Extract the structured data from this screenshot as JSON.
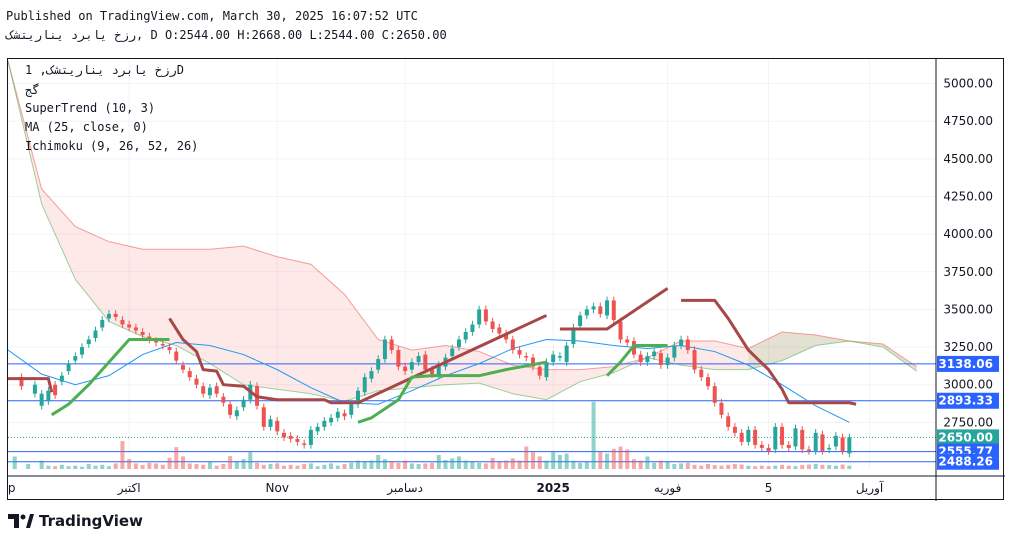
{
  "header": {
    "published": "Published on TradingView.com, March 30, 2025 16:07:52 UTC",
    "symbol_line": "رزخ یابرد یناریتشک, D O:2544.00 H:2668.00 L:2544.00 C:2650.00"
  },
  "legend": {
    "line1": "رزخ یابرد یناریتشک, 1D",
    "line2": "گج",
    "indicators": [
      "SuperTrend (10, 3)",
      "MA (25, close, 0)",
      "Ichimoku (9, 26, 52, 26)"
    ]
  },
  "brand": {
    "name": "TradingView"
  },
  "colors": {
    "up": "#26a69a",
    "down": "#ef5350",
    "supertrend_up": "#4caf50",
    "supertrend_down": "#a84747",
    "ma": "#2196f3",
    "price_label": "#26a69a",
    "level_label": "#2962ff"
  },
  "chart_data": {
    "type": "candlestick",
    "y_range": [
      2440,
      5150
    ],
    "x_range": [
      0,
      130
    ],
    "y_ticks": [
      "5000.00",
      "4750.00",
      "4500.00",
      "4250.00",
      "4000.00",
      "3750.00",
      "3500.00",
      "3250.00",
      "3000.00",
      "2750.00"
    ],
    "x_ticks": [
      {
        "label": "ep",
        "x": 0
      },
      {
        "label": "اکتبر",
        "x": 18
      },
      {
        "label": "Nov",
        "x": 40
      },
      {
        "label": "دسامبر",
        "x": 59
      },
      {
        "label": "2025",
        "x": 81
      },
      {
        "label": "فوریه",
        "x": 98
      },
      {
        "label": "5",
        "x": 113
      },
      {
        "label": "آوریل",
        "x": 128
      }
    ],
    "price_labels": [
      {
        "value": 3138.06,
        "text": "3138.06",
        "kind": "level"
      },
      {
        "value": 2893.33,
        "text": "2893.33",
        "kind": "level"
      },
      {
        "value": 2650.0,
        "text": "2650.00",
        "kind": "last"
      },
      {
        "value": 2555.77,
        "text": "2555.77",
        "kind": "level"
      },
      {
        "value": 2488.26,
        "text": "2488.26",
        "kind": "level"
      }
    ],
    "horizontal_lines": [
      3138.06,
      2893.33,
      2555.77,
      2488.26
    ],
    "last_price": 2650.0,
    "candles": [
      [
        2,
        3050,
        2990
      ],
      [
        4,
        2940,
        3000
      ],
      [
        5,
        2860,
        2940
      ],
      [
        6,
        2890,
        2960
      ],
      [
        7,
        3000,
        2930
      ],
      [
        8,
        3020,
        3060
      ],
      [
        9,
        3090,
        3140
      ],
      [
        10,
        3160,
        3190
      ],
      [
        11,
        3200,
        3250
      ],
      [
        12,
        3270,
        3300
      ],
      [
        13,
        3310,
        3360
      ],
      [
        14,
        3380,
        3430
      ],
      [
        15,
        3440,
        3470
      ],
      [
        16,
        3470,
        3450
      ],
      [
        17,
        3430,
        3400
      ],
      [
        18,
        3400,
        3380
      ],
      [
        19,
        3380,
        3360
      ],
      [
        20,
        3350,
        3330
      ],
      [
        21,
        3320,
        3300
      ],
      [
        22,
        3290,
        3280
      ],
      [
        23,
        3270,
        3260
      ],
      [
        24,
        3250,
        3230
      ],
      [
        25,
        3220,
        3160
      ],
      [
        26,
        3130,
        3100
      ],
      [
        27,
        3090,
        3050
      ],
      [
        28,
        3040,
        3000
      ],
      [
        29,
        2990,
        2940
      ],
      [
        30,
        2930,
        2980
      ],
      [
        31,
        2990,
        2940
      ],
      [
        32,
        2920,
        2880
      ],
      [
        33,
        2870,
        2800
      ],
      [
        34,
        2790,
        2830
      ],
      [
        35,
        2850,
        2900
      ],
      [
        36,
        2900,
        3000
      ],
      [
        37,
        2990,
        2860
      ],
      [
        38,
        2850,
        2720
      ],
      [
        39,
        2720,
        2770
      ],
      [
        40,
        2760,
        2690
      ],
      [
        41,
        2680,
        2650
      ],
      [
        42,
        2660,
        2640
      ],
      [
        43,
        2640,
        2620
      ],
      [
        44,
        2610,
        2600
      ],
      [
        45,
        2600,
        2700
      ],
      [
        46,
        2690,
        2720
      ],
      [
        47,
        2720,
        2760
      ],
      [
        48,
        2750,
        2780
      ],
      [
        49,
        2780,
        2820
      ],
      [
        50,
        2810,
        2790
      ],
      [
        51,
        2800,
        2870
      ],
      [
        52,
        2870,
        2960
      ],
      [
        53,
        2950,
        3050
      ],
      [
        54,
        3040,
        3090
      ],
      [
        55,
        3100,
        3170
      ],
      [
        56,
        3170,
        3300
      ],
      [
        57,
        3300,
        3230
      ],
      [
        58,
        3230,
        3120
      ],
      [
        59,
        3120,
        3090
      ],
      [
        60,
        3100,
        3150
      ],
      [
        61,
        3150,
        3190
      ],
      [
        62,
        3200,
        3100
      ],
      [
        63,
        3100,
        3070
      ],
      [
        64,
        3060,
        3130
      ],
      [
        65,
        3120,
        3180
      ],
      [
        66,
        3190,
        3240
      ],
      [
        67,
        3250,
        3300
      ],
      [
        68,
        3300,
        3350
      ],
      [
        69,
        3350,
        3400
      ],
      [
        70,
        3400,
        3500
      ],
      [
        71,
        3500,
        3420
      ],
      [
        72,
        3420,
        3370
      ],
      [
        73,
        3380,
        3340
      ],
      [
        74,
        3340,
        3300
      ],
      [
        75,
        3300,
        3230
      ],
      [
        76,
        3230,
        3200
      ],
      [
        77,
        3190,
        3180
      ],
      [
        78,
        3180,
        3120
      ],
      [
        79,
        3120,
        3060
      ],
      [
        80,
        3050,
        3150
      ],
      [
        81,
        3150,
        3200
      ],
      [
        82,
        3180,
        3190
      ],
      [
        83,
        3150,
        3260
      ],
      [
        84,
        3270,
        3380
      ],
      [
        85,
        3390,
        3460
      ],
      [
        86,
        3460,
        3500
      ],
      [
        87,
        3500,
        3520
      ],
      [
        88,
        3520,
        3470
      ],
      [
        89,
        3460,
        3560
      ],
      [
        90,
        3560,
        3430
      ],
      [
        91,
        3420,
        3300
      ],
      [
        92,
        3300,
        3280
      ],
      [
        93,
        3290,
        3200
      ],
      [
        94,
        3200,
        3150
      ],
      [
        95,
        3150,
        3190
      ],
      [
        96,
        3190,
        3220
      ],
      [
        97,
        3210,
        3130
      ],
      [
        98,
        3130,
        3180
      ],
      [
        99,
        3180,
        3260
      ],
      [
        100,
        3260,
        3300
      ],
      [
        101,
        3300,
        3230
      ],
      [
        102,
        3230,
        3100
      ],
      [
        103,
        3100,
        3050
      ],
      [
        104,
        3050,
        2990
      ],
      [
        105,
        2990,
        2880
      ],
      [
        106,
        2880,
        2800
      ],
      [
        107,
        2790,
        2720
      ],
      [
        108,
        2720,
        2680
      ],
      [
        109,
        2680,
        2620
      ],
      [
        110,
        2620,
        2700
      ],
      [
        111,
        2700,
        2600
      ],
      [
        112,
        2600,
        2580
      ],
      [
        113,
        2580,
        2560
      ],
      [
        114,
        2570,
        2720
      ],
      [
        115,
        2720,
        2600
      ],
      [
        116,
        2600,
        2580
      ],
      [
        117,
        2590,
        2710
      ],
      [
        118,
        2700,
        2570
      ],
      [
        119,
        2570,
        2560
      ],
      [
        120,
        2560,
        2680
      ],
      [
        121,
        2670,
        2560
      ],
      [
        122,
        2570,
        2580
      ],
      [
        123,
        2590,
        2660
      ],
      [
        124,
        2650,
        2560
      ],
      [
        125,
        2544,
        2650
      ]
    ],
    "supertrend_down": [
      [
        0,
        3040
      ],
      [
        6,
        3040
      ],
      [
        6.5,
        2950
      ],
      [
        24,
        3440
      ],
      [
        26,
        3300
      ],
      [
        28,
        3220
      ],
      [
        29,
        3100
      ],
      [
        31,
        3090
      ],
      [
        32,
        3000
      ],
      [
        35,
        2990
      ],
      [
        37,
        2920
      ],
      [
        40,
        2900
      ],
      [
        47,
        2900
      ],
      [
        48,
        2880
      ],
      [
        52,
        2880
      ],
      [
        80,
        3460
      ],
      [
        82,
        3370
      ],
      [
        89,
        3370
      ],
      [
        98,
        3640
      ],
      [
        100,
        3560
      ],
      [
        105,
        3560
      ],
      [
        107,
        3440
      ],
      [
        110,
        3230
      ],
      [
        113,
        3100
      ],
      [
        115,
        2970
      ],
      [
        116,
        2880
      ],
      [
        125,
        2880
      ],
      [
        126,
        2870
      ]
    ],
    "supertrend_up_segments": [
      [
        [
          6.5,
          2800
        ],
        [
          9,
          2870
        ],
        [
          12,
          3000
        ],
        [
          14,
          3100
        ],
        [
          16,
          3200
        ],
        [
          18,
          3300
        ],
        [
          24,
          3300
        ]
      ],
      [
        [
          52,
          2750
        ],
        [
          54,
          2780
        ],
        [
          58,
          2900
        ],
        [
          60,
          3050
        ],
        [
          63,
          3060
        ],
        [
          70,
          3060
        ],
        [
          74,
          3100
        ],
        [
          80,
          3150
        ]
      ],
      [
        [
          89,
          3060
        ],
        [
          91,
          3150
        ],
        [
          93,
          3260
        ],
        [
          98,
          3260
        ]
      ]
    ],
    "ma": [
      [
        0,
        3230
      ],
      [
        5,
        3070
      ],
      [
        10,
        3000
      ],
      [
        15,
        3060
      ],
      [
        20,
        3200
      ],
      [
        25,
        3280
      ],
      [
        30,
        3260
      ],
      [
        35,
        3200
      ],
      [
        40,
        3100
      ],
      [
        45,
        2980
      ],
      [
        50,
        2880
      ],
      [
        55,
        2870
      ],
      [
        60,
        2960
      ],
      [
        65,
        3060
      ],
      [
        70,
        3140
      ],
      [
        75,
        3240
      ],
      [
        80,
        3300
      ],
      [
        85,
        3290
      ],
      [
        90,
        3260
      ],
      [
        95,
        3240
      ],
      [
        100,
        3260
      ],
      [
        105,
        3220
      ],
      [
        110,
        3130
      ],
      [
        115,
        3000
      ],
      [
        120,
        2860
      ],
      [
        125,
        2750
      ]
    ],
    "cloud_top": [
      [
        0,
        5150
      ],
      [
        5,
        4300
      ],
      [
        10,
        4050
      ],
      [
        15,
        3950
      ],
      [
        20,
        3900
      ],
      [
        25,
        3900
      ],
      [
        30,
        3900
      ],
      [
        35,
        3920
      ],
      [
        40,
        3850
      ],
      [
        45,
        3800
      ],
      [
        50,
        3600
      ],
      [
        55,
        3300
      ],
      [
        60,
        3230
      ],
      [
        65,
        3260
      ],
      [
        70,
        3220
      ],
      [
        75,
        3130
      ],
      [
        80,
        3100
      ],
      [
        85,
        3100
      ],
      [
        90,
        3120
      ],
      [
        95,
        3180
      ],
      [
        100,
        3290
      ],
      [
        105,
        3290
      ],
      [
        110,
        3240
      ],
      [
        115,
        3350
      ],
      [
        120,
        3330
      ],
      [
        125,
        3290
      ],
      [
        130,
        3270
      ],
      [
        135,
        3120
      ]
    ],
    "cloud_bottom": [
      [
        0,
        5150
      ],
      [
        5,
        4200
      ],
      [
        10,
        3700
      ],
      [
        15,
        3420
      ],
      [
        20,
        3320
      ],
      [
        25,
        3260
      ],
      [
        30,
        3140
      ],
      [
        35,
        3000
      ],
      [
        40,
        2970
      ],
      [
        45,
        2940
      ],
      [
        50,
        2890
      ],
      [
        55,
        2960
      ],
      [
        60,
        2980
      ],
      [
        65,
        3000
      ],
      [
        70,
        3010
      ],
      [
        75,
        2940
      ],
      [
        80,
        2900
      ],
      [
        85,
        3020
      ],
      [
        90,
        3080
      ],
      [
        95,
        3180
      ],
      [
        100,
        3130
      ],
      [
        105,
        3100
      ],
      [
        110,
        3100
      ],
      [
        115,
        3160
      ],
      [
        120,
        3260
      ],
      [
        125,
        3290
      ],
      [
        130,
        3250
      ],
      [
        135,
        3090
      ]
    ],
    "volume": [
      [
        1,
        0.45
      ],
      [
        3,
        0.18
      ],
      [
        5,
        0.3
      ],
      [
        6,
        0.12
      ],
      [
        7,
        0.1
      ],
      [
        8,
        0.15
      ],
      [
        9,
        0.1
      ],
      [
        10,
        0.12
      ],
      [
        11,
        0.08
      ],
      [
        12,
        0.18
      ],
      [
        13,
        0.12
      ],
      [
        14,
        0.15
      ],
      [
        15,
        0.1
      ],
      [
        16,
        0.2
      ],
      [
        17,
        1.0
      ],
      [
        18,
        0.35
      ],
      [
        19,
        0.2
      ],
      [
        20,
        0.14
      ],
      [
        21,
        0.22
      ],
      [
        22,
        0.2
      ],
      [
        23,
        0.15
      ],
      [
        24,
        0.4
      ],
      [
        25,
        0.78
      ],
      [
        26,
        0.45
      ],
      [
        27,
        0.2
      ],
      [
        28,
        0.18
      ],
      [
        29,
        0.15
      ],
      [
        30,
        0.25
      ],
      [
        31,
        0.12
      ],
      [
        32,
        0.18
      ],
      [
        33,
        0.46
      ],
      [
        34,
        0.25
      ],
      [
        35,
        0.35
      ],
      [
        36,
        0.6
      ],
      [
        37,
        0.22
      ],
      [
        38,
        0.15
      ],
      [
        39,
        0.18
      ],
      [
        40,
        0.2
      ],
      [
        41,
        0.12
      ],
      [
        42,
        0.15
      ],
      [
        43,
        0.12
      ],
      [
        44,
        0.18
      ],
      [
        45,
        0.2
      ],
      [
        46,
        0.1
      ],
      [
        47,
        0.15
      ],
      [
        48,
        0.2
      ],
      [
        49,
        0.12
      ],
      [
        50,
        0.18
      ],
      [
        51,
        0.22
      ],
      [
        52,
        0.3
      ],
      [
        53,
        0.25
      ],
      [
        54,
        0.3
      ],
      [
        55,
        0.5
      ],
      [
        56,
        0.35
      ],
      [
        57,
        0.28
      ],
      [
        58,
        0.22
      ],
      [
        59,
        0.3
      ],
      [
        60,
        0.2
      ],
      [
        61,
        0.18
      ],
      [
        62,
        0.2
      ],
      [
        63,
        0.22
      ],
      [
        64,
        0.5
      ],
      [
        65,
        0.32
      ],
      [
        66,
        0.38
      ],
      [
        67,
        0.45
      ],
      [
        68,
        0.3
      ],
      [
        69,
        0.28
      ],
      [
        70,
        0.22
      ],
      [
        71,
        0.2
      ],
      [
        72,
        0.4
      ],
      [
        73,
        0.25
      ],
      [
        74,
        0.3
      ],
      [
        75,
        0.38
      ],
      [
        76,
        0.3
      ],
      [
        77,
        0.8
      ],
      [
        78,
        0.6
      ],
      [
        79,
        0.45
      ],
      [
        80,
        0.3
      ],
      [
        81,
        0.6
      ],
      [
        82,
        0.5
      ],
      [
        83,
        0.55
      ],
      [
        84,
        0.3
      ],
      [
        85,
        0.22
      ],
      [
        86,
        0.25
      ],
      [
        87,
        2.4
      ],
      [
        88,
        0.6
      ],
      [
        89,
        0.55
      ],
      [
        90,
        0.72
      ],
      [
        91,
        0.8
      ],
      [
        92,
        0.7
      ],
      [
        93,
        0.35
      ],
      [
        94,
        0.3
      ],
      [
        95,
        0.45
      ],
      [
        96,
        0.22
      ],
      [
        97,
        0.3
      ],
      [
        98,
        0.25
      ],
      [
        99,
        0.18
      ],
      [
        100,
        0.2
      ],
      [
        101,
        0.22
      ],
      [
        102,
        0.15
      ],
      [
        103,
        0.12
      ],
      [
        104,
        0.18
      ],
      [
        105,
        0.14
      ],
      [
        106,
        0.12
      ],
      [
        107,
        0.15
      ],
      [
        108,
        0.18
      ],
      [
        109,
        0.16
      ],
      [
        110,
        0.12
      ],
      [
        111,
        0.1
      ],
      [
        112,
        0.12
      ],
      [
        113,
        0.1
      ],
      [
        114,
        0.12
      ],
      [
        115,
        0.15
      ],
      [
        116,
        0.12
      ],
      [
        117,
        0.1
      ],
      [
        118,
        0.14
      ],
      [
        119,
        0.16
      ],
      [
        120,
        0.18
      ],
      [
        121,
        0.15
      ],
      [
        122,
        0.14
      ],
      [
        123,
        0.12
      ],
      [
        124,
        0.16
      ],
      [
        125,
        0.12
      ]
    ]
  }
}
